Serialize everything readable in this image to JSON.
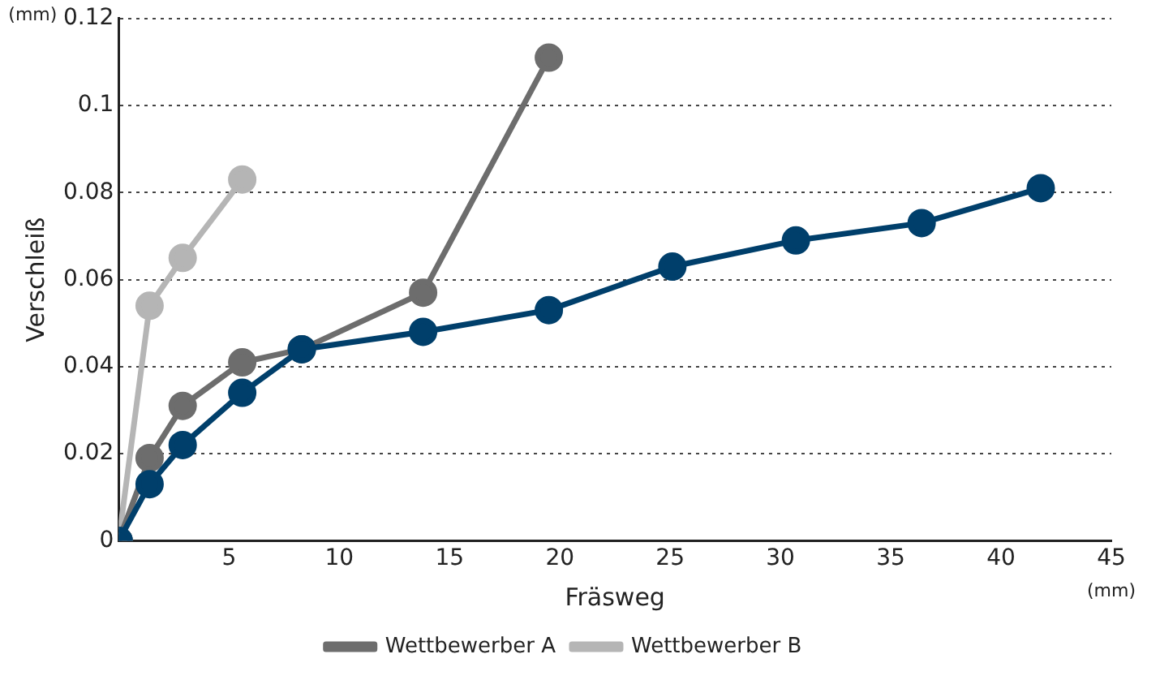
{
  "chart_data": {
    "type": "line",
    "xlabel": "Fräsweg",
    "ylabel": "Verschleiß",
    "annotations": [
      "(mm)",
      "(mm)"
    ],
    "xlim": [
      0,
      45
    ],
    "xticks": [
      5,
      10,
      15,
      20,
      25,
      30,
      35,
      40,
      45
    ],
    "ylim": [
      0,
      0.12
    ],
    "yticks": [
      0,
      0.02,
      0.04,
      0.06,
      0.08,
      0.1,
      0.12
    ],
    "grid": "y",
    "legend": "bottom",
    "marker": "circle",
    "line_style": "solid",
    "series": [
      {
        "color": "#003f6b",
        "x": [
          0,
          1.4,
          2.9,
          5.6,
          8.3,
          13.8,
          19.5,
          25.1,
          30.7,
          36.4,
          41.8
        ],
        "values": [
          0,
          0.013,
          0.022,
          0.034,
          0.044,
          0.048,
          0.053,
          0.063,
          0.069,
          0.073,
          0.081
        ]
      },
      {
        "name": "Wettbewerber A",
        "color": "#6d6d6d",
        "x": [
          0,
          1.4,
          2.9,
          5.6,
          8.3,
          13.8,
          19.5
        ],
        "values": [
          0,
          0.019,
          0.031,
          0.041,
          0.044,
          0.057,
          0.111
        ]
      },
      {
        "name": "Wettbewerber B",
        "color": "#b5b5b5",
        "x": [
          0,
          1.4,
          2.9,
          5.6
        ],
        "values": [
          0,
          0.054,
          0.065,
          0.083
        ]
      }
    ]
  }
}
